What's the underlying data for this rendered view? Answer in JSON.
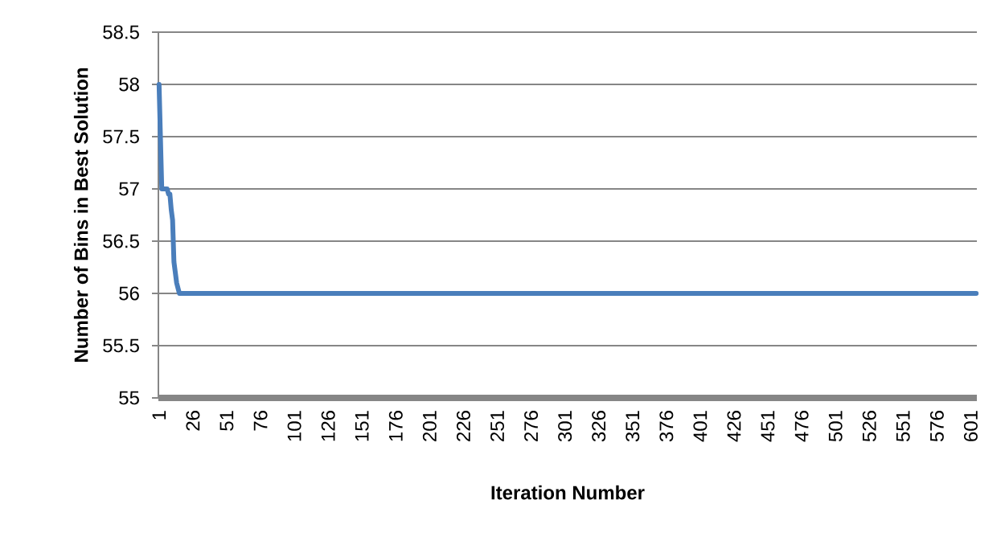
{
  "chart_data": {
    "type": "line",
    "xlabel": "Iteration Number",
    "ylabel": "Number of Bins in Best Solution",
    "x": [
      1,
      3,
      7,
      8,
      9,
      10,
      11,
      12,
      13,
      14,
      15,
      16,
      605
    ],
    "values": [
      58,
      57,
      57,
      56.95,
      56.95,
      56.8,
      56.7,
      56.3,
      56.2,
      56.1,
      56.05,
      56,
      56
    ],
    "color": "#4a7ebb",
    "xlim": [
      0.5,
      605.5
    ],
    "xticks": [
      1,
      26,
      51,
      76,
      101,
      126,
      151,
      176,
      201,
      226,
      251,
      276,
      301,
      326,
      351,
      376,
      401,
      426,
      451,
      476,
      501,
      526,
      551,
      576,
      601
    ],
    "ylim": [
      55,
      58.5
    ],
    "yticks": [
      55,
      55.5,
      56,
      56.5,
      57,
      57.5,
      58,
      58.5
    ],
    "grid": "y",
    "marker": "none",
    "line_style": "solid"
  }
}
